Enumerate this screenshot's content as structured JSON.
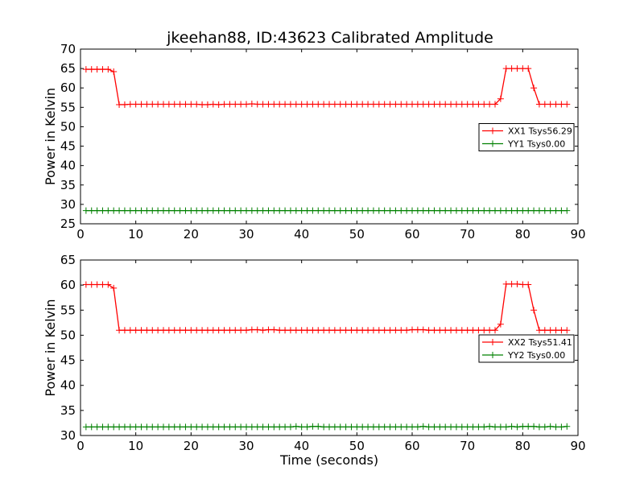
{
  "title": "jkeehan88, ID:43623 Calibrated Amplitude",
  "chart_data": [
    {
      "type": "line",
      "xlabel": "",
      "ylabel": "Power in Kelvin",
      "xlim": [
        0,
        90
      ],
      "ylim": [
        25,
        70
      ],
      "xticks": [
        0,
        10,
        20,
        30,
        40,
        50,
        60,
        70,
        80,
        90
      ],
      "yticks": [
        25,
        30,
        35,
        40,
        45,
        50,
        55,
        60,
        65,
        70
      ],
      "legend_position": "center-right",
      "series": [
        {
          "name": "XX1 Tsys56.29",
          "color": "#ff0000",
          "x": [
            1,
            2,
            3,
            4,
            5,
            6,
            7,
            8,
            9,
            10,
            11,
            12,
            13,
            14,
            15,
            16,
            17,
            18,
            19,
            20,
            21,
            22,
            23,
            24,
            25,
            26,
            27,
            28,
            29,
            30,
            31,
            32,
            33,
            34,
            35,
            36,
            37,
            38,
            39,
            40,
            41,
            42,
            43,
            44,
            45,
            46,
            47,
            48,
            49,
            50,
            51,
            52,
            53,
            54,
            55,
            56,
            57,
            58,
            59,
            60,
            61,
            62,
            63,
            64,
            65,
            66,
            67,
            68,
            69,
            70,
            71,
            72,
            73,
            74,
            75,
            76,
            77,
            78,
            79,
            80,
            81,
            82,
            83,
            84,
            85,
            86,
            87,
            88
          ],
          "y": [
            64.8,
            64.8,
            64.8,
            64.8,
            64.8,
            64.2,
            55.7,
            55.7,
            55.8,
            55.8,
            55.8,
            55.8,
            55.8,
            55.8,
            55.8,
            55.8,
            55.8,
            55.8,
            55.8,
            55.8,
            55.8,
            55.7,
            55.7,
            55.8,
            55.7,
            55.8,
            55.8,
            55.8,
            55.8,
            55.8,
            55.9,
            55.8,
            55.8,
            55.8,
            55.8,
            55.8,
            55.8,
            55.8,
            55.8,
            55.8,
            55.8,
            55.8,
            55.8,
            55.8,
            55.8,
            55.8,
            55.8,
            55.8,
            55.8,
            55.8,
            55.8,
            55.8,
            55.8,
            55.8,
            55.8,
            55.8,
            55.8,
            55.8,
            55.8,
            55.8,
            55.8,
            55.8,
            55.8,
            55.8,
            55.8,
            55.8,
            55.8,
            55.8,
            55.8,
            55.8,
            55.8,
            55.8,
            55.8,
            55.8,
            55.8,
            57.2,
            65.0,
            65.0,
            65.0,
            65.0,
            65.0,
            60.0,
            55.8,
            55.8,
            55.8,
            55.8,
            55.8,
            55.8
          ]
        },
        {
          "name": "YY1 Tsys0.00",
          "color": "#008000",
          "x": [
            1,
            2,
            3,
            4,
            5,
            6,
            7,
            8,
            9,
            10,
            11,
            12,
            13,
            14,
            15,
            16,
            17,
            18,
            19,
            20,
            21,
            22,
            23,
            24,
            25,
            26,
            27,
            28,
            29,
            30,
            31,
            32,
            33,
            34,
            35,
            36,
            37,
            38,
            39,
            40,
            41,
            42,
            43,
            44,
            45,
            46,
            47,
            48,
            49,
            50,
            51,
            52,
            53,
            54,
            55,
            56,
            57,
            58,
            59,
            60,
            61,
            62,
            63,
            64,
            65,
            66,
            67,
            68,
            69,
            70,
            71,
            72,
            73,
            74,
            75,
            76,
            77,
            78,
            79,
            80,
            81,
            82,
            83,
            84,
            85,
            86,
            87,
            88
          ],
          "y": [
            28.4,
            28.4,
            28.4,
            28.4,
            28.4,
            28.4,
            28.4,
            28.4,
            28.4,
            28.4,
            28.4,
            28.4,
            28.4,
            28.4,
            28.4,
            28.4,
            28.4,
            28.4,
            28.4,
            28.4,
            28.4,
            28.4,
            28.4,
            28.4,
            28.4,
            28.4,
            28.4,
            28.4,
            28.4,
            28.4,
            28.4,
            28.4,
            28.4,
            28.4,
            28.4,
            28.4,
            28.4,
            28.4,
            28.4,
            28.4,
            28.4,
            28.4,
            28.4,
            28.4,
            28.4,
            28.4,
            28.4,
            28.4,
            28.4,
            28.4,
            28.4,
            28.4,
            28.4,
            28.4,
            28.4,
            28.4,
            28.4,
            28.4,
            28.4,
            28.4,
            28.4,
            28.4,
            28.4,
            28.4,
            28.4,
            28.4,
            28.4,
            28.4,
            28.4,
            28.4,
            28.4,
            28.4,
            28.4,
            28.4,
            28.4,
            28.4,
            28.4,
            28.4,
            28.4,
            28.4,
            28.4,
            28.4,
            28.4,
            28.4,
            28.4,
            28.4,
            28.4,
            28.4
          ]
        }
      ]
    },
    {
      "type": "line",
      "xlabel": "Time (seconds)",
      "ylabel": "Power in Kelvin",
      "xlim": [
        0,
        90
      ],
      "ylim": [
        30,
        65
      ],
      "xticks": [
        0,
        10,
        20,
        30,
        40,
        50,
        60,
        70,
        80,
        90
      ],
      "yticks": [
        30,
        35,
        40,
        45,
        50,
        55,
        60,
        65
      ],
      "legend_position": "center-right",
      "series": [
        {
          "name": "XX2 Tsys51.41",
          "color": "#ff0000",
          "x": [
            1,
            2,
            3,
            4,
            5,
            6,
            7,
            8,
            9,
            10,
            11,
            12,
            13,
            14,
            15,
            16,
            17,
            18,
            19,
            20,
            21,
            22,
            23,
            24,
            25,
            26,
            27,
            28,
            29,
            30,
            31,
            32,
            33,
            34,
            35,
            36,
            37,
            38,
            39,
            40,
            41,
            42,
            43,
            44,
            45,
            46,
            47,
            48,
            49,
            50,
            51,
            52,
            53,
            54,
            55,
            56,
            57,
            58,
            59,
            60,
            61,
            62,
            63,
            64,
            65,
            66,
            67,
            68,
            69,
            70,
            71,
            72,
            73,
            74,
            75,
            76,
            77,
            78,
            79,
            80,
            81,
            82,
            83,
            84,
            85,
            86,
            87,
            88
          ],
          "y": [
            60.1,
            60.1,
            60.1,
            60.1,
            60.1,
            59.4,
            51.0,
            51.0,
            51.0,
            51.0,
            51.0,
            51.0,
            51.0,
            51.0,
            51.0,
            51.0,
            51.0,
            51.0,
            51.0,
            51.0,
            51.0,
            51.0,
            51.0,
            51.0,
            51.0,
            51.0,
            51.0,
            51.0,
            51.0,
            51.0,
            51.1,
            51.1,
            51.0,
            51.1,
            51.1,
            51.0,
            51.0,
            51.0,
            51.0,
            51.0,
            51.0,
            51.0,
            51.0,
            51.0,
            51.0,
            51.0,
            51.0,
            51.0,
            51.0,
            51.0,
            51.0,
            51.0,
            51.0,
            51.0,
            51.0,
            51.0,
            51.0,
            51.0,
            51.0,
            51.1,
            51.1,
            51.1,
            51.0,
            51.0,
            51.0,
            51.0,
            51.0,
            51.0,
            51.0,
            51.0,
            51.0,
            51.0,
            51.0,
            51.0,
            51.0,
            52.2,
            60.2,
            60.2,
            60.2,
            60.1,
            60.1,
            55.0,
            51.0,
            51.0,
            51.0,
            51.0,
            51.0,
            51.0
          ]
        },
        {
          "name": "YY2 Tsys0.00",
          "color": "#008000",
          "x": [
            1,
            2,
            3,
            4,
            5,
            6,
            7,
            8,
            9,
            10,
            11,
            12,
            13,
            14,
            15,
            16,
            17,
            18,
            19,
            20,
            21,
            22,
            23,
            24,
            25,
            26,
            27,
            28,
            29,
            30,
            31,
            32,
            33,
            34,
            35,
            36,
            37,
            38,
            39,
            40,
            41,
            42,
            43,
            44,
            45,
            46,
            47,
            48,
            49,
            50,
            51,
            52,
            53,
            54,
            55,
            56,
            57,
            58,
            59,
            60,
            61,
            62,
            63,
            64,
            65,
            66,
            67,
            68,
            69,
            70,
            71,
            72,
            73,
            74,
            75,
            76,
            77,
            78,
            79,
            80,
            81,
            82,
            83,
            84,
            85,
            86,
            87,
            88
          ],
          "y": [
            31.7,
            31.7,
            31.7,
            31.7,
            31.7,
            31.7,
            31.7,
            31.7,
            31.7,
            31.7,
            31.7,
            31.7,
            31.7,
            31.7,
            31.7,
            31.7,
            31.7,
            31.7,
            31.7,
            31.7,
            31.7,
            31.7,
            31.7,
            31.7,
            31.7,
            31.7,
            31.7,
            31.7,
            31.7,
            31.7,
            31.7,
            31.7,
            31.7,
            31.7,
            31.7,
            31.7,
            31.7,
            31.7,
            31.8,
            31.7,
            31.7,
            31.8,
            31.8,
            31.7,
            31.7,
            31.7,
            31.7,
            31.7,
            31.7,
            31.7,
            31.7,
            31.7,
            31.7,
            31.7,
            31.7,
            31.7,
            31.7,
            31.7,
            31.7,
            31.7,
            31.7,
            31.8,
            31.7,
            31.7,
            31.7,
            31.7,
            31.7,
            31.7,
            31.7,
            31.7,
            31.7,
            31.7,
            31.7,
            31.8,
            31.7,
            31.7,
            31.7,
            31.8,
            31.7,
            31.8,
            31.8,
            31.8,
            31.7,
            31.7,
            31.8,
            31.7,
            31.7,
            31.8
          ]
        }
      ]
    }
  ]
}
